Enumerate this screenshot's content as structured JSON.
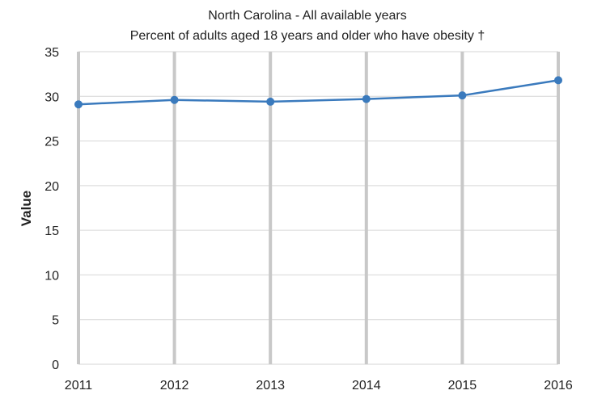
{
  "chart_data": {
    "type": "line",
    "title": "North Carolina - All available years",
    "subtitle": "Percent of adults aged 18 years and older who have obesity †",
    "xlabel": "",
    "ylabel": "Value",
    "x": [
      "2011",
      "2012",
      "2013",
      "2014",
      "2015",
      "2016"
    ],
    "series": [
      {
        "values": [
          29.1,
          29.6,
          29.4,
          29.7,
          30.1,
          31.8
        ],
        "color": "#3a7abd"
      }
    ],
    "ylim": [
      0,
      35
    ],
    "yticks": [
      0,
      5,
      10,
      15,
      20,
      25,
      30,
      35
    ],
    "grid": true,
    "legend": "none",
    "colors": {
      "line": "#3a7abd",
      "gridline": "#d6d6d6",
      "vertical_grid": "#c8c8c8"
    }
  }
}
